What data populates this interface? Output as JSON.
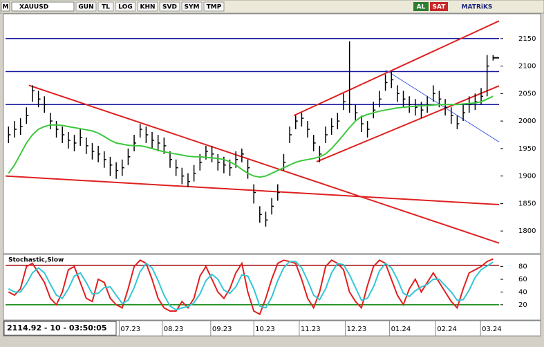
{
  "toolbar": {
    "logo": "M",
    "symbol": "XAUUSD",
    "buttons": [
      "GUN",
      "TL",
      "LOG",
      "KHN",
      "SVD",
      "SYM",
      "TMP"
    ],
    "buy": "AL",
    "sell": "SAT",
    "brand": "MATRiKS"
  },
  "status": "2114.92 - 10 - 03:50:05",
  "chart_data": [
    {
      "type": "ohlc",
      "bar_color": "#000000",
      "high": [
        1990,
        2000,
        2005,
        2025,
        2065,
        2055,
        2045,
        2015,
        2000,
        1990,
        1980,
        1975,
        1985,
        1970,
        1960,
        1955,
        1945,
        1935,
        1925,
        1930,
        1950,
        1975,
        1995,
        1990,
        1980,
        1975,
        1970,
        1945,
        1930,
        1915,
        1905,
        1920,
        1940,
        1955,
        1955,
        1940,
        1935,
        1930,
        1945,
        1950,
        1930,
        1885,
        1845,
        1835,
        1860,
        1885,
        1940,
        1990,
        2010,
        2015,
        2000,
        1975,
        1955,
        1990,
        2005,
        2015,
        2050,
        2145,
        2030,
        2010,
        2000,
        2035,
        2055,
        2085,
        2090,
        2065,
        2055,
        2045,
        2040,
        2035,
        2045,
        2065,
        2055,
        2040,
        2025,
        2010,
        2030,
        2045,
        2050,
        2060,
        2120,
        2120
      ],
      "low": [
        1960,
        1970,
        1975,
        1995,
        2035,
        2025,
        2015,
        1985,
        1970,
        1960,
        1950,
        1945,
        1955,
        1940,
        1930,
        1925,
        1915,
        1900,
        1895,
        1900,
        1920,
        1945,
        1970,
        1960,
        1950,
        1945,
        1940,
        1915,
        1900,
        1885,
        1880,
        1890,
        1910,
        1930,
        1925,
        1910,
        1905,
        1900,
        1915,
        1925,
        1895,
        1850,
        1815,
        1808,
        1830,
        1855,
        1910,
        1960,
        1985,
        1990,
        1970,
        1945,
        1925,
        1960,
        1975,
        1985,
        2020,
        2015,
        2000,
        1980,
        1970,
        2005,
        2025,
        2055,
        2060,
        2035,
        2025,
        2015,
        2010,
        2005,
        2015,
        2035,
        2025,
        2010,
        1995,
        1985,
        2000,
        2015,
        2020,
        2030,
        2045,
        2110
      ],
      "close": [
        1975,
        1985,
        1990,
        2010,
        2055,
        2040,
        2030,
        2000,
        1985,
        1975,
        1965,
        1960,
        1970,
        1955,
        1945,
        1940,
        1930,
        1920,
        1910,
        1915,
        1935,
        1960,
        1985,
        1975,
        1965,
        1960,
        1955,
        1930,
        1915,
        1900,
        1890,
        1905,
        1925,
        1945,
        1940,
        1925,
        1920,
        1915,
        1930,
        1940,
        1915,
        1870,
        1830,
        1820,
        1845,
        1870,
        1925,
        1975,
        2000,
        2005,
        1985,
        1960,
        1940,
        1975,
        1990,
        2000,
        2035,
        2030,
        2015,
        1995,
        1985,
        2020,
        2040,
        2070,
        2075,
        2050,
        2040,
        2030,
        2025,
        2020,
        2030,
        2050,
        2040,
        2025,
        2010,
        1995,
        2015,
        2030,
        2035,
        2045,
        2100,
        2115
      ],
      "series": [
        {
          "color": "#3cc83c",
          "values": [
            1905,
            1920,
            1940,
            1960,
            1975,
            1985,
            1990,
            1993,
            1993,
            1992,
            1990,
            1988,
            1986,
            1984,
            1982,
            1978,
            1972,
            1965,
            1960,
            1958,
            1956,
            1955,
            1955,
            1953,
            1950,
            1947,
            1944,
            1942,
            1940,
            1938,
            1936,
            1935,
            1935,
            1934,
            1933,
            1932,
            1930,
            1926,
            1920,
            1912,
            1905,
            1900,
            1898,
            1900,
            1905,
            1910,
            1915,
            1920,
            1925,
            1928,
            1930,
            1932,
            1935,
            1940,
            1950,
            1962,
            1975,
            1988,
            2000,
            2008,
            2012,
            2015,
            2018,
            2020,
            2022,
            2024,
            2025,
            2026,
            2027,
            2028,
            2028,
            2029,
            2030,
            2030,
            2030,
            2030,
            2031,
            2032,
            2033,
            2035,
            2040,
            2045
          ]
        }
      ],
      "xlim": [
        -0.5,
        82
      ],
      "xticks": [
        {
          "value": 18.5,
          "label": "07.23"
        },
        {
          "value": 25.7,
          "label": "08.23"
        },
        {
          "value": 33.8,
          "label": "09.23"
        },
        {
          "value": 41,
          "label": "10.23"
        },
        {
          "value": 48.6,
          "label": "11.23"
        },
        {
          "value": 56.3,
          "label": "12.23"
        },
        {
          "value": 63.7,
          "label": "01.24"
        },
        {
          "value": 71.4,
          "label": "02.24"
        },
        {
          "value": 78.9,
          "label": "03.24"
        }
      ],
      "ylim": [
        1760,
        2195
      ],
      "yticks": [
        1800,
        1850,
        1900,
        1950,
        2000,
        2050,
        2100,
        2150
      ],
      "hlines": [
        {
          "value": 2150,
          "color": "#1a1aa0"
        },
        {
          "value": 2090,
          "color": "#1a1aa0"
        },
        {
          "value": 2030,
          "color": "#1a1aa0"
        }
      ],
      "trendlines": [
        {
          "x": [
            3.4,
            82
          ],
          "y": [
            2065,
            1778
          ],
          "color": "#e02020"
        },
        {
          "x": [
            -0.5,
            82
          ],
          "y": [
            1900,
            1848
          ],
          "color": "#e02020"
        },
        {
          "x": [
            47.7,
            82
          ],
          "y": [
            2010,
            2182
          ],
          "color": "#e02020"
        },
        {
          "x": [
            51.5,
            82
          ],
          "y": [
            1926,
            2064
          ],
          "color": "#e02020"
        },
        {
          "x": [
            63,
            82
          ],
          "y": [
            2093,
            1962
          ],
          "color": "#4060e0"
        }
      ]
    },
    {
      "type": "line",
      "title": "Stochastic,Slow",
      "series": [
        {
          "color": "#e0201f",
          "values": [
            40,
            35,
            45,
            80,
            85,
            70,
            55,
            30,
            20,
            40,
            75,
            80,
            55,
            30,
            25,
            60,
            55,
            30,
            20,
            15,
            45,
            80,
            90,
            85,
            60,
            30,
            15,
            10,
            10,
            25,
            15,
            30,
            65,
            80,
            60,
            40,
            30,
            45,
            70,
            85,
            40,
            10,
            5,
            30,
            60,
            85,
            90,
            88,
            85,
            60,
            30,
            15,
            40,
            80,
            90,
            85,
            75,
            40,
            25,
            15,
            50,
            80,
            90,
            85,
            60,
            35,
            20,
            45,
            60,
            40,
            55,
            70,
            55,
            40,
            25,
            15,
            45,
            70,
            75,
            80,
            88,
            92
          ]
        },
        {
          "color": "#33c6d6",
          "values": [
            45,
            40,
            40,
            53,
            70,
            78,
            70,
            52,
            35,
            30,
            45,
            65,
            70,
            55,
            37,
            38,
            47,
            48,
            35,
            22,
            27,
            47,
            72,
            85,
            78,
            58,
            35,
            18,
            12,
            15,
            17,
            23,
            37,
            58,
            68,
            60,
            43,
            38,
            48,
            67,
            65,
            45,
            18,
            15,
            32,
            58,
            78,
            88,
            88,
            78,
            58,
            35,
            28,
            45,
            70,
            85,
            83,
            67,
            47,
            27,
            30,
            48,
            73,
            85,
            78,
            60,
            38,
            33,
            42,
            48,
            52,
            60,
            60,
            50,
            40,
            27,
            28,
            43,
            63,
            75,
            81,
            87
          ]
        }
      ],
      "xlim": [
        -0.5,
        82
      ],
      "ylim": [
        -3,
        97
      ],
      "yticks": [
        20,
        40,
        60,
        80
      ],
      "hlines": [
        {
          "value": 82,
          "color": "#a00000"
        },
        {
          "value": 20,
          "color": "#008000"
        }
      ]
    }
  ]
}
